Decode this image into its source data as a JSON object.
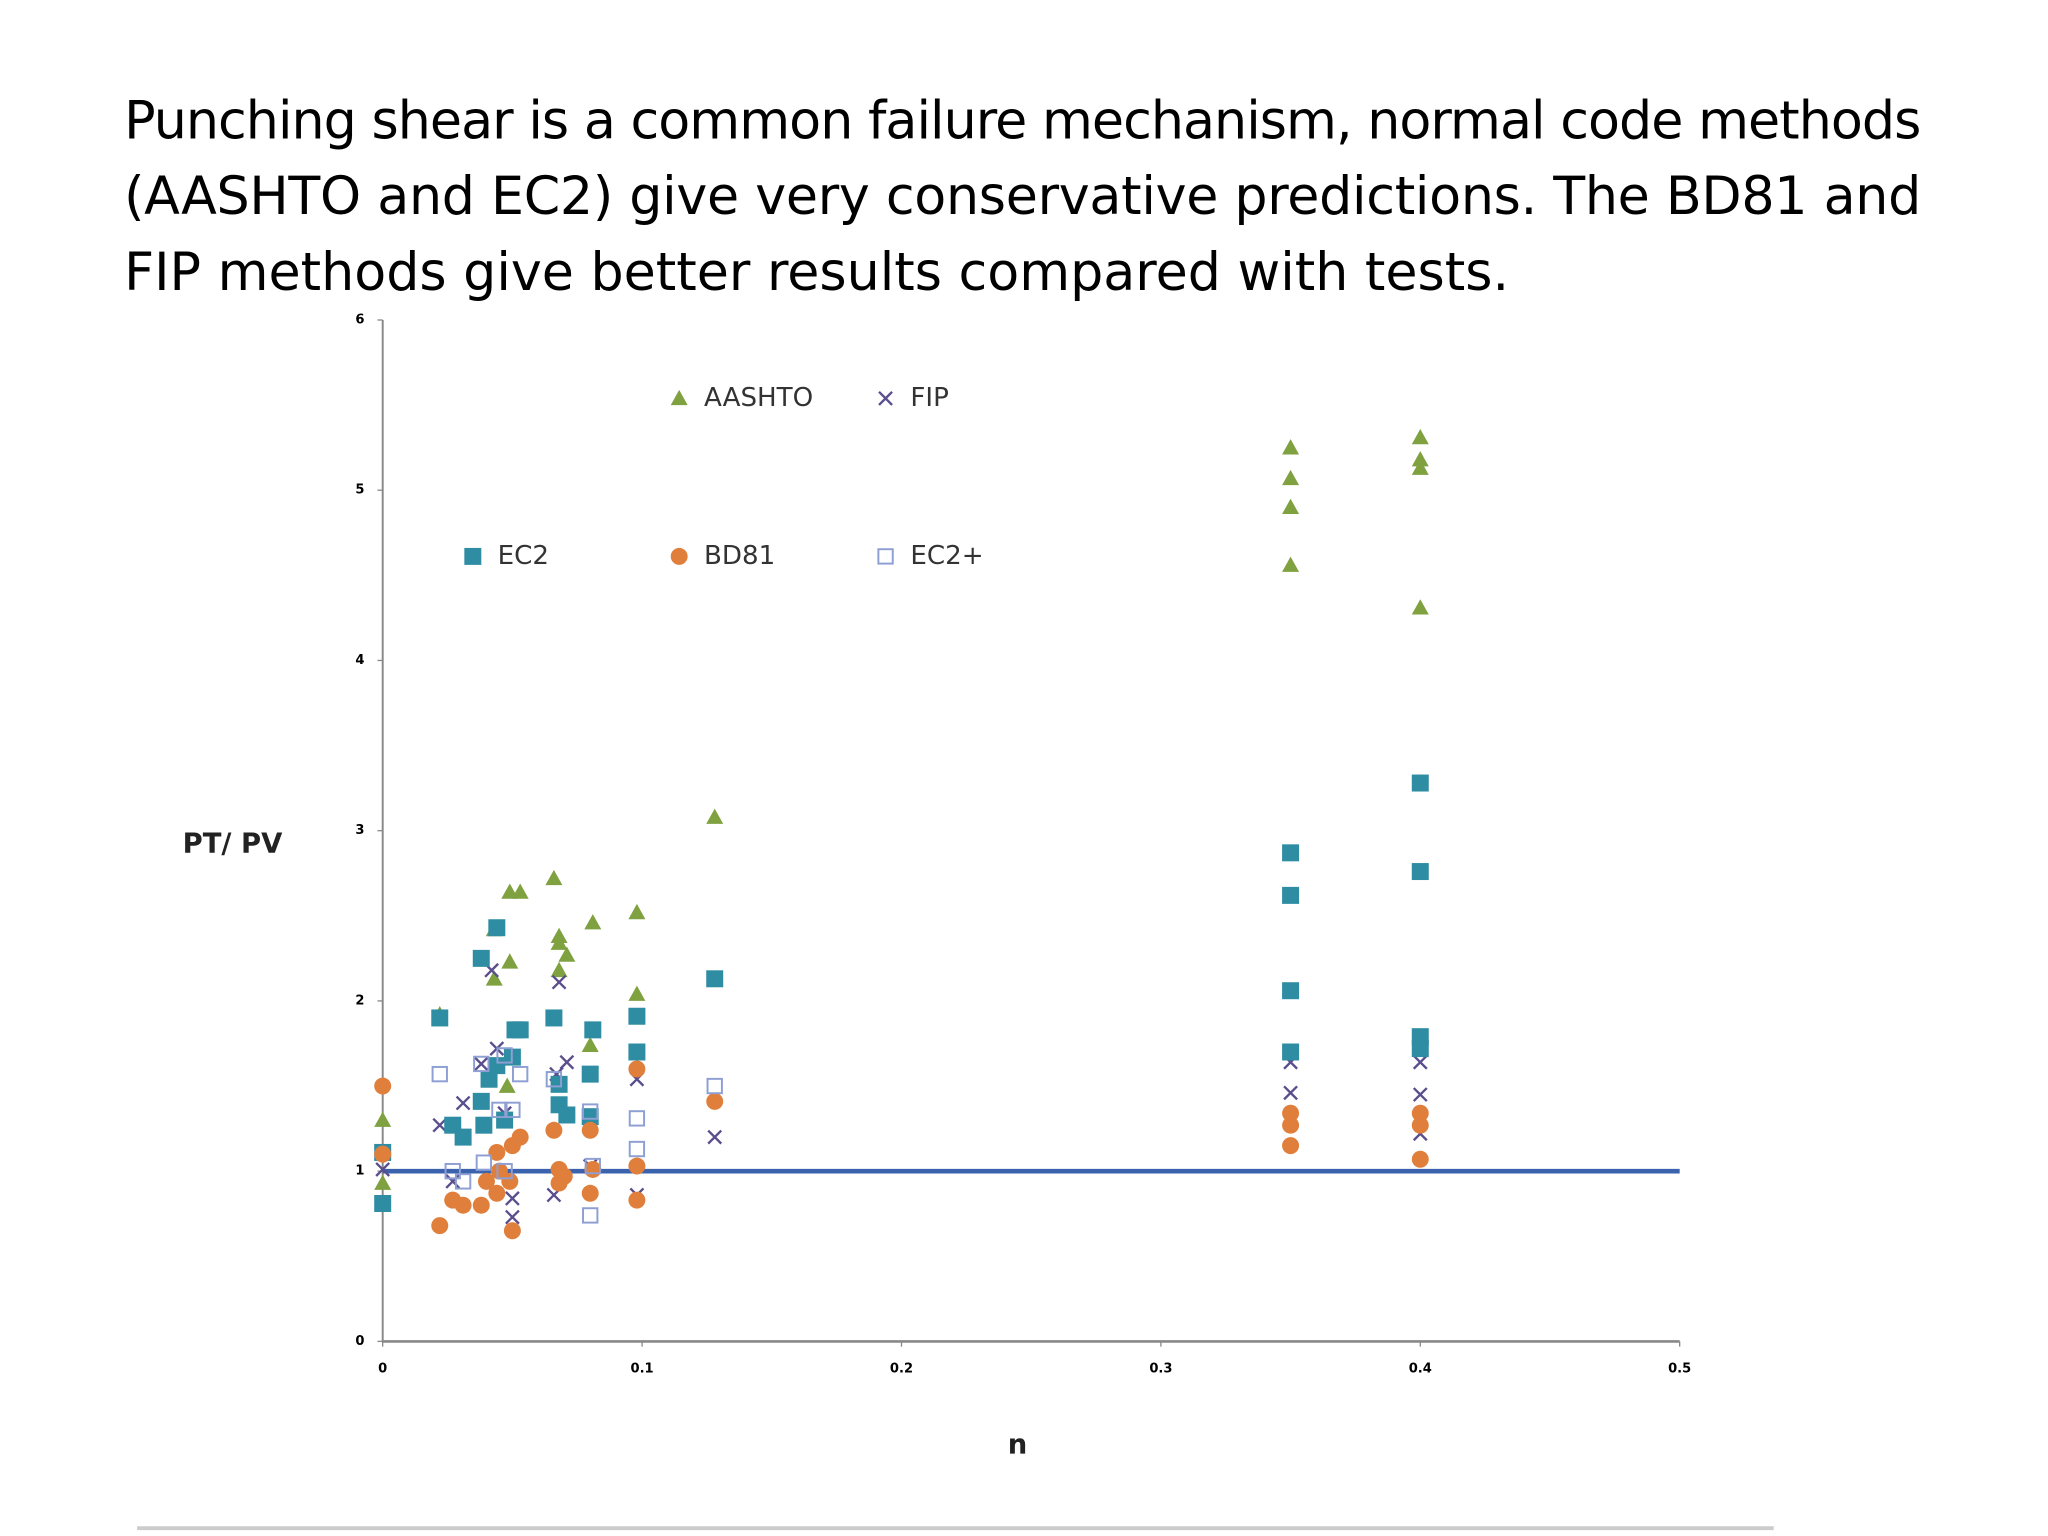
{
  "text": {
    "lines": [
      "Punching shear is a common failure mechanism, normal code methods",
      "(AASHTO and EC2) give very conservative predictions.  The BD81 and",
      "FIP methods give better results compared with tests."
    ]
  },
  "chart_data": {
    "type": "scatter",
    "x_label": "n",
    "y_label": "PT/ PV",
    "xlim": [
      0,
      0.5
    ],
    "ylim": [
      0,
      6
    ],
    "xticks": [
      0,
      0.1,
      0.2,
      0.3,
      0.4,
      0.5
    ],
    "yticks": [
      0,
      1,
      2,
      3,
      4,
      5,
      6
    ],
    "reference_line": {
      "value": 1,
      "color": "#3a62ad"
    },
    "series": [
      {
        "name": "AASHTO",
        "color": "#7fa140",
        "marker": "triangle",
        "x": [
          0,
          0,
          0.022,
          0.043,
          0.043,
          0.049,
          0.053,
          0.049,
          0.048,
          0.066,
          0.068,
          0.068,
          0.071,
          0.068,
          0.081,
          0.08,
          0.098,
          0.098,
          0.128,
          0.35,
          0.35,
          0.35,
          0.35,
          0.4,
          0.4,
          0.4,
          0.4
        ],
        "values": [
          1.3,
          0.93,
          1.92,
          2.42,
          2.13,
          2.64,
          2.64,
          2.23,
          1.5,
          2.72,
          2.38,
          2.34,
          2.27,
          2.18,
          2.46,
          1.74,
          2.52,
          2.04,
          3.08,
          5.25,
          5.07,
          4.9,
          4.56,
          5.31,
          5.18,
          5.13,
          4.31
        ]
      },
      {
        "name": "FIP",
        "color": "#5a4e8c",
        "marker": "cross",
        "x": [
          0,
          0.022,
          0.031,
          0.027,
          0.038,
          0.042,
          0.044,
          0.047,
          0.05,
          0.05,
          0.068,
          0.071,
          0.067,
          0.066,
          0.08,
          0.098,
          0.098,
          0.128,
          0.35,
          0.35,
          0.4,
          0.4,
          0.4
        ],
        "values": [
          1.01,
          1.27,
          1.4,
          0.94,
          1.63,
          2.18,
          1.72,
          1.34,
          0.84,
          0.73,
          2.11,
          1.64,
          1.57,
          0.86,
          1.03,
          1.54,
          0.86,
          1.2,
          1.64,
          1.46,
          1.64,
          1.45,
          1.22
        ]
      },
      {
        "name": "EC2",
        "color": "#2e8ca3",
        "marker": "square",
        "x": [
          0,
          0,
          0.022,
          0.027,
          0.031,
          0.038,
          0.044,
          0.038,
          0.041,
          0.044,
          0.05,
          0.051,
          0.053,
          0.039,
          0.047,
          0.066,
          0.068,
          0.068,
          0.071,
          0.081,
          0.08,
          0.08,
          0.098,
          0.098,
          0.128,
          0.35,
          0.35,
          0.35,
          0.35,
          0.4,
          0.4,
          0.4,
          0.4
        ],
        "values": [
          1.11,
          0.81,
          1.9,
          1.27,
          1.2,
          2.25,
          2.43,
          1.41,
          1.54,
          1.62,
          1.67,
          1.83,
          1.83,
          1.27,
          1.3,
          1.9,
          1.51,
          1.39,
          1.33,
          1.83,
          1.57,
          1.32,
          1.91,
          1.7,
          2.13,
          2.87,
          2.62,
          2.06,
          1.7,
          3.28,
          2.76,
          1.79,
          1.72
        ]
      },
      {
        "name": "BD81",
        "color": "#e07f3c",
        "marker": "circle",
        "x": [
          0,
          0,
          0.022,
          0.027,
          0.031,
          0.038,
          0.04,
          0.044,
          0.045,
          0.044,
          0.05,
          0.053,
          0.05,
          0.049,
          0.066,
          0.068,
          0.07,
          0.068,
          0.08,
          0.08,
          0.081,
          0.098,
          0.098,
          0.098,
          0.128,
          0.35,
          0.35,
          0.35,
          0.4,
          0.4,
          0.4
        ],
        "values": [
          1.5,
          1.1,
          0.68,
          0.83,
          0.8,
          0.8,
          0.94,
          0.87,
          1.0,
          1.11,
          1.15,
          1.2,
          0.65,
          0.94,
          1.24,
          1.01,
          0.97,
          0.93,
          1.24,
          0.87,
          1.01,
          1.6,
          1.03,
          0.83,
          1.41,
          1.34,
          1.27,
          1.15,
          1.34,
          1.27,
          1.07
        ]
      },
      {
        "name": "EC2+",
        "color": "#8e9fd3",
        "marker": "hollow-square",
        "x": [
          0.022,
          0.027,
          0.031,
          0.038,
          0.039,
          0.045,
          0.05,
          0.053,
          0.047,
          0.047,
          0.066,
          0.08,
          0.08,
          0.081,
          0.098,
          0.098,
          0.128
        ],
        "values": [
          1.57,
          1.0,
          0.94,
          1.63,
          1.05,
          1.36,
          1.36,
          1.57,
          1.68,
          1.0,
          1.54,
          1.35,
          0.74,
          1.03,
          1.31,
          1.13,
          1.5
        ]
      }
    ]
  }
}
